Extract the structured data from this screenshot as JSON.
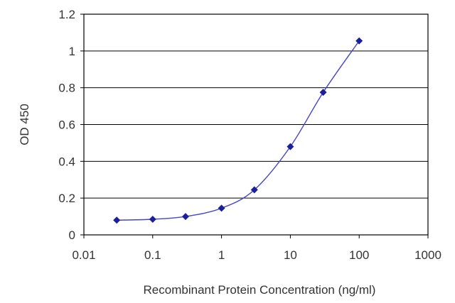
{
  "chart_data": {
    "type": "line",
    "title": "",
    "xlabel": "Recombinant Protein Concentration (ng/ml)",
    "ylabel": "OD 450",
    "xscale": "log",
    "xlim": [
      0.01,
      1000
    ],
    "ylim": [
      0,
      1.2
    ],
    "x_ticks": [
      0.01,
      0.1,
      1,
      10,
      100,
      1000
    ],
    "x_tick_labels": [
      "0.01",
      "0.1",
      "1",
      "10",
      "100",
      "1000"
    ],
    "y_ticks": [
      0,
      0.2,
      0.4,
      0.6,
      0.8,
      1,
      1.2
    ],
    "y_tick_labels": [
      "0",
      "0.2",
      "0.4",
      "0.6",
      "0.8",
      "1",
      "1.2"
    ],
    "grid": "horizontal",
    "legend": "none",
    "series": [
      {
        "marker": "diamond",
        "color": "#1c1f9c",
        "points": [
          {
            "x": 0.03,
            "y": 0.08
          },
          {
            "x": 0.1,
            "y": 0.085
          },
          {
            "x": 0.3,
            "y": 0.1
          },
          {
            "x": 1,
            "y": 0.145
          },
          {
            "x": 3,
            "y": 0.245
          },
          {
            "x": 10,
            "y": 0.48
          },
          {
            "x": 30,
            "y": 0.775
          },
          {
            "x": 100,
            "y": 1.055
          }
        ]
      }
    ]
  }
}
